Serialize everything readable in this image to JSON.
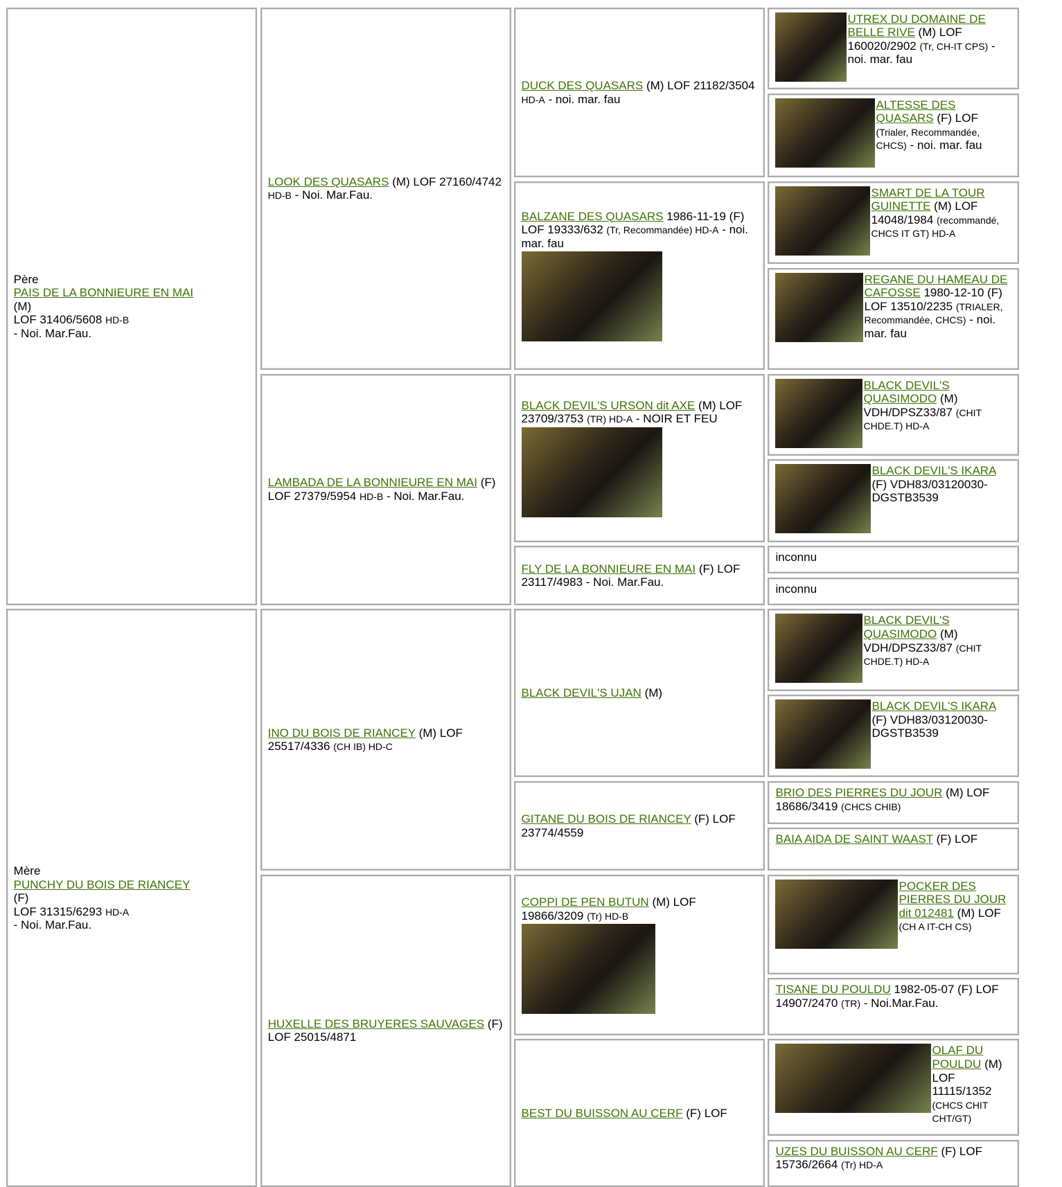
{
  "generations": [
    [
      {
        "label": "Père",
        "name": "PAIS DE LA BONNIEURE EN MAI",
        "parts": [
          "(M)",
          "LOF 31406/5608",
          "HD-B",
          "- Noi. Mar.Fau."
        ]
      },
      {
        "label": "Mère",
        "name": "PUNCHY DU BOIS DE RIANCEY",
        "parts": [
          "(F)",
          "LOF 31315/6293",
          "HD-A",
          "- Noi. Mar.Fau."
        ]
      }
    ],
    [
      {
        "name": "LOOK DES QUASARS",
        "parts": [
          "(M) LOF 27160/4742",
          "HD-B",
          "- Noi. Mar.Fau."
        ]
      },
      {
        "name": "LAMBADA DE LA BONNIEURE EN MAI",
        "parts": [
          "(F) LOF 27379/5954",
          "HD-B",
          "- Noi. Mar.Fau."
        ]
      },
      {
        "name": "INO DU BOIS DE RIANCEY",
        "parts": [
          "(M) LOF 25517/4336",
          "(CH IB) HD-C"
        ]
      },
      {
        "name": "HUXELLE DES BRUYERES SAUVAGES",
        "parts": [
          "(F) LOF 25015/4871"
        ]
      }
    ],
    [
      {
        "name": "DUCK DES QUASARS",
        "parts": [
          "(M) LOF 21182/3504",
          "HD-A",
          "- noi. mar. fau"
        ]
      },
      {
        "name": "BALZANE DES QUASARS",
        "parts": [
          "1986-11-19 (F) LOF 19333/632",
          "(Tr, Recommandée) HD-A",
          "- noi. mar. fau"
        ]
      },
      {
        "name": "BLACK DEVIL'S URSON dit AXE",
        "parts": [
          "(M) LOF 23709/3753",
          "(TR) HD-A",
          "- NOIR ET FEU"
        ]
      },
      {
        "name": "FLY DE LA BONNIEURE EN MAI",
        "parts": [
          "(F) LOF 23117/4983 - Noi. Mar.Fau."
        ]
      },
      {
        "name": "BLACK DEVIL'S UJAN",
        "parts": [
          "(M)"
        ]
      },
      {
        "name": "GITANE DU BOIS DE RIANCEY",
        "parts": [
          "(F) LOF 23774/4559"
        ]
      },
      {
        "name": "COPPI DE PEN BUTUN",
        "parts": [
          "(M) LOF 19866/3209",
          "(Tr) HD-B"
        ]
      },
      {
        "name": "BEST DU BUISSON AU CERF",
        "parts": [
          "(F) LOF"
        ]
      }
    ],
    [
      {
        "name": "UTREX DU DOMAINE DE BELLE RIVE",
        "parts": [
          "(M) LOF 160020/2902",
          "(Tr, CH-IT CPS)",
          "- noi. mar. fau"
        ]
      },
      {
        "name": "ALTESSE DES QUASARS",
        "parts": [
          "(F) LOF",
          "(Trialer, Recommandée, CHCS)",
          "- noi. mar. fau"
        ]
      },
      {
        "name": "SMART DE LA TOUR GUINETTE",
        "parts": [
          "(M) LOF 14048/1984",
          "(recommandé, CHCS IT GT) HD-A"
        ]
      },
      {
        "name": "REGANE DU HAMEAU DE CAFOSSE",
        "parts": [
          "1980-12-10 (F) LOF 13510/2235",
          "(TRIALER, Recommandée, CHCS)",
          "- noi. mar. fau"
        ]
      },
      {
        "name": "BLACK DEVIL'S QUASIMODO",
        "parts": [
          "(M) VDH/DPSZ33/87",
          "(CHIT CHDE.T) HD-A"
        ]
      },
      {
        "name": "BLACK DEVIL'S IKARA",
        "parts": [
          "(F) VDH83/03120030-DGSTB3539"
        ]
      },
      {
        "parts": [
          "inconnu"
        ]
      },
      {
        "parts": [
          "inconnu"
        ]
      },
      {
        "name": "BLACK DEVIL'S QUASIMODO",
        "parts": [
          "(M) VDH/DPSZ33/87",
          "(CHIT CHDE.T) HD-A"
        ]
      },
      {
        "name": "BLACK DEVIL'S IKARA",
        "parts": [
          "(F) VDH83/03120030-DGSTB3539"
        ]
      },
      {
        "name": "BRIO DES PIERRES DU JOUR",
        "parts": [
          "(M) LOF 18686/3419",
          "(CHCS CHIB)"
        ]
      },
      {
        "name": "BAIA AIDA DE SAINT WAAST",
        "parts": [
          "(F) LOF"
        ]
      },
      {
        "name": "POCKER DES PIERRES DU JOUR dit 012481",
        "parts": [
          "(M) LOF",
          "(CH A IT-CH CS)"
        ]
      },
      {
        "name": "TISANE DU POULDU",
        "parts": [
          "1982-05-07 (F) LOF 14907/2470",
          "(TR)",
          "- Noi.Mar.Fau."
        ]
      },
      {
        "name": "OLAF DU POULDU",
        "parts": [
          "(M) LOF 11115/1352",
          "(CHCS CHIT CHT/GT)"
        ]
      },
      {
        "name": "UZES DU BUISSON AU CERF",
        "parts": [
          "(F) LOF 15736/2664",
          "(Tr) HD-A"
        ]
      }
    ]
  ]
}
